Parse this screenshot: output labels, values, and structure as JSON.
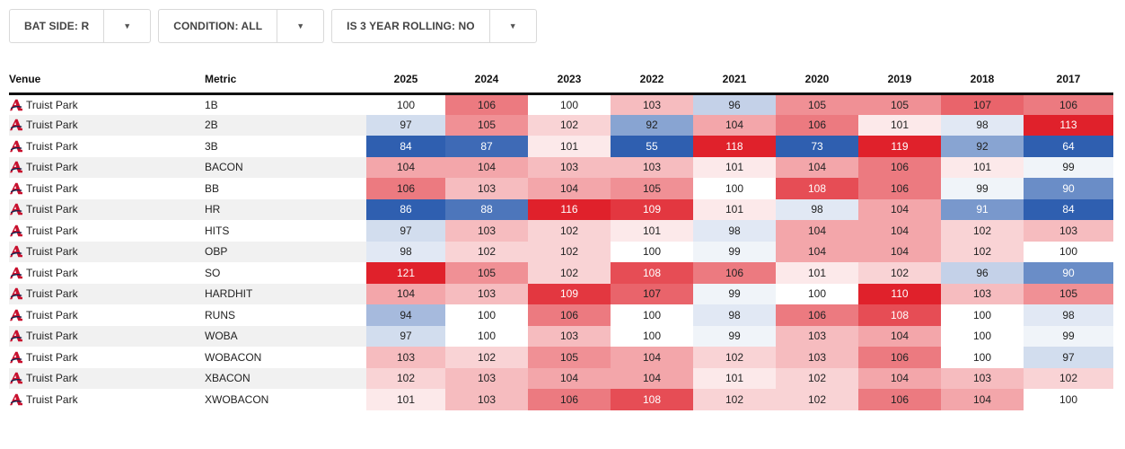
{
  "filters": [
    {
      "label": "BAT SIDE: R",
      "icon": "chevron-down-icon"
    },
    {
      "label": "CONDITION: ALL",
      "icon": "chevron-down-icon"
    },
    {
      "label": "IS 3 YEAR ROLLING: NO",
      "icon": "chevron-down-icon"
    }
  ],
  "table": {
    "headers": {
      "venue": "Venue",
      "metric": "Metric"
    },
    "years": [
      "2025",
      "2024",
      "2023",
      "2022",
      "2021",
      "2020",
      "2019",
      "2018",
      "2017"
    ],
    "venue_logo": "atlanta-braves-logo-icon",
    "colors": {
      "high": "#e0212b",
      "low": "#2f5fb0",
      "neutral": "#ffffff",
      "stripe": "#f1f1f1"
    },
    "rows": [
      {
        "venue": "Truist Park",
        "metric": "1B",
        "values": [
          100,
          106,
          100,
          103,
          96,
          105,
          105,
          107,
          106
        ]
      },
      {
        "venue": "Truist Park",
        "metric": "2B",
        "values": [
          97,
          105,
          102,
          92,
          104,
          106,
          101,
          98,
          113
        ]
      },
      {
        "venue": "Truist Park",
        "metric": "3B",
        "values": [
          84,
          87,
          101,
          55,
          118,
          73,
          119,
          92,
          64
        ]
      },
      {
        "venue": "Truist Park",
        "metric": "BACON",
        "values": [
          104,
          104,
          103,
          103,
          101,
          104,
          106,
          101,
          99
        ]
      },
      {
        "venue": "Truist Park",
        "metric": "BB",
        "values": [
          106,
          103,
          104,
          105,
          100,
          108,
          106,
          99,
          90
        ]
      },
      {
        "venue": "Truist Park",
        "metric": "HR",
        "values": [
          86,
          88,
          116,
          109,
          101,
          98,
          104,
          91,
          84
        ]
      },
      {
        "venue": "Truist Park",
        "metric": "HITS",
        "values": [
          97,
          103,
          102,
          101,
          98,
          104,
          104,
          102,
          103
        ]
      },
      {
        "venue": "Truist Park",
        "metric": "OBP",
        "values": [
          98,
          102,
          102,
          100,
          99,
          104,
          104,
          102,
          100
        ]
      },
      {
        "venue": "Truist Park",
        "metric": "SO",
        "values": [
          121,
          105,
          102,
          108,
          106,
          101,
          102,
          96,
          90
        ]
      },
      {
        "venue": "Truist Park",
        "metric": "HARDHIT",
        "values": [
          104,
          103,
          109,
          107,
          99,
          100,
          110,
          103,
          105
        ]
      },
      {
        "venue": "Truist Park",
        "metric": "RUNS",
        "values": [
          94,
          100,
          106,
          100,
          98,
          106,
          108,
          100,
          98
        ]
      },
      {
        "venue": "Truist Park",
        "metric": "WOBA",
        "values": [
          97,
          100,
          103,
          100,
          99,
          103,
          104,
          100,
          99
        ]
      },
      {
        "venue": "Truist Park",
        "metric": "WOBACON",
        "values": [
          103,
          102,
          105,
          104,
          102,
          103,
          106,
          100,
          97
        ]
      },
      {
        "venue": "Truist Park",
        "metric": "XBACON",
        "values": [
          102,
          103,
          104,
          104,
          101,
          102,
          104,
          103,
          102
        ]
      },
      {
        "venue": "Truist Park",
        "metric": "XWOBACON",
        "values": [
          101,
          103,
          106,
          108,
          102,
          102,
          106,
          104,
          100
        ]
      }
    ]
  }
}
